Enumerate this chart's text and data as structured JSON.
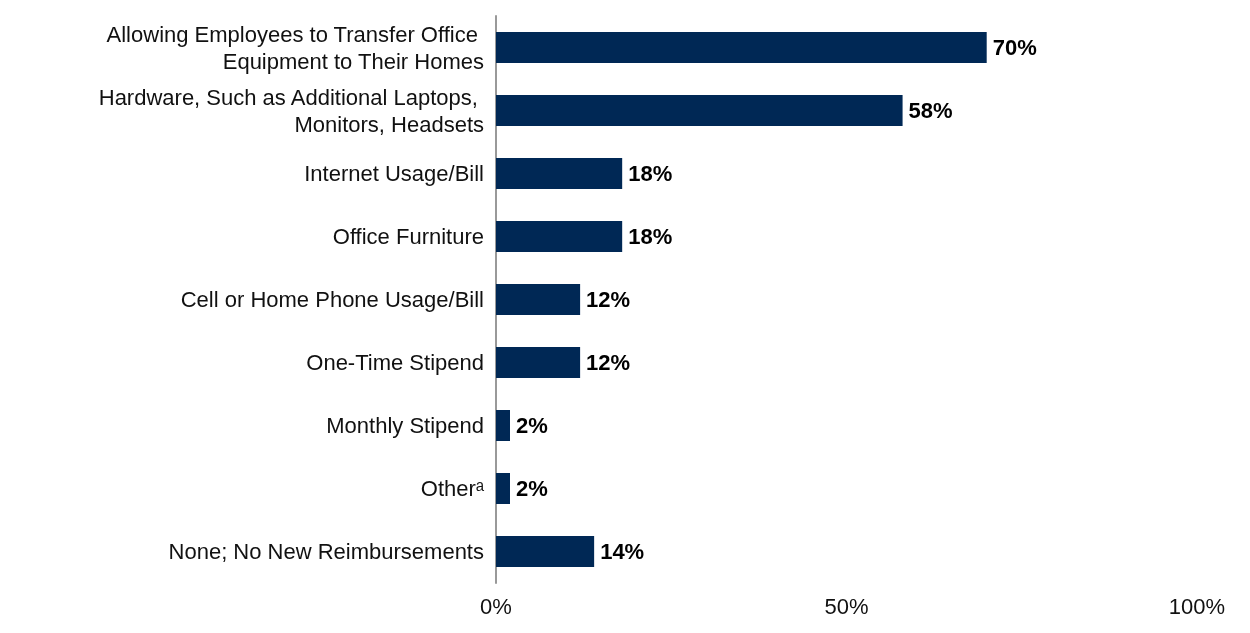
{
  "chart_data": {
    "type": "bar",
    "orientation": "horizontal",
    "categories": [
      "Allowing Employees to Transfer Office Equipment to Their Homes",
      "Hardware, Such as Additional Laptops, Monitors, Headsets",
      "Internet Usage/Bill",
      "Office Furniture",
      "Cell or Home Phone Usage/Bill",
      "One-Time Stipend",
      "Monthly Stipend",
      "Otherᵃ",
      "None; No New Reimbursements"
    ],
    "values": [
      70,
      58,
      18,
      18,
      12,
      12,
      2,
      2,
      14
    ],
    "value_labels": [
      "70%",
      "58%",
      "18%",
      "18%",
      "12%",
      "12%",
      "2%",
      "2%",
      "14%"
    ],
    "color": "#002855",
    "xlim": [
      0,
      100
    ],
    "xticks": [
      {
        "value": 0,
        "label": "0%"
      },
      {
        "value": 50,
        "label": "50%"
      },
      {
        "value": 100,
        "label": "100%"
      }
    ],
    "grid": false
  }
}
